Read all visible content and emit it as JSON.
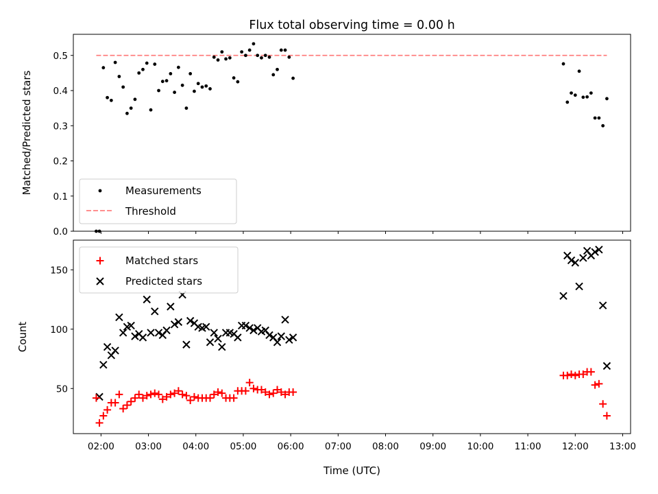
{
  "chart_data": [
    {
      "type": "scatter",
      "title": "Flux total observing time = 0.00 h",
      "xlabel": "",
      "ylabel": "Matched/Predicted stars",
      "xlim": [
        "01:25",
        "13:10"
      ],
      "ylim": [
        0.0,
        0.56
      ],
      "yticks": [
        "0.0",
        "0.1",
        "0.2",
        "0.3",
        "0.4",
        "0.5"
      ],
      "grid": false,
      "legend_placement": "lower-left",
      "series": [
        {
          "name": "Measurements",
          "marker": "dot",
          "color": "#000000",
          "x": [
            "01:54",
            "01:58",
            "02:03",
            "02:08",
            "02:13",
            "02:18",
            "02:23",
            "02:28",
            "02:33",
            "02:38",
            "02:43",
            "02:48",
            "02:53",
            "02:58",
            "03:03",
            "03:08",
            "03:13",
            "03:18",
            "03:23",
            "03:28",
            "03:33",
            "03:38",
            "03:43",
            "03:48",
            "03:53",
            "03:58",
            "04:03",
            "04:08",
            "04:13",
            "04:18",
            "04:23",
            "04:28",
            "04:33",
            "04:38",
            "04:43",
            "04:48",
            "04:53",
            "04:58",
            "05:03",
            "05:08",
            "05:13",
            "05:18",
            "05:23",
            "05:28",
            "05:33",
            "05:38",
            "05:43",
            "05:48",
            "05:53",
            "05:58",
            "06:03",
            "11:45",
            "11:50",
            "11:55",
            "12:00",
            "12:05",
            "12:10",
            "12:15",
            "12:20",
            "12:25",
            "12:30",
            "12:35",
            "12:40"
          ],
          "y": [
            0.0,
            0.0,
            0.465,
            0.38,
            0.372,
            0.48,
            0.44,
            0.41,
            0.335,
            0.35,
            0.375,
            0.45,
            0.46,
            0.478,
            0.345,
            0.475,
            0.4,
            0.426,
            0.428,
            0.448,
            0.395,
            0.466,
            0.415,
            0.35,
            0.448,
            0.398,
            0.42,
            0.41,
            0.413,
            0.405,
            0.495,
            0.487,
            0.51,
            0.49,
            0.493,
            0.436,
            0.425,
            0.51,
            0.5,
            0.515,
            0.533,
            0.5,
            0.493,
            0.5,
            0.495,
            0.445,
            0.46,
            0.515,
            0.515,
            0.495,
            0.435,
            0.476,
            0.367,
            0.393,
            0.387,
            0.455,
            0.381,
            0.382,
            0.393,
            0.322,
            0.322,
            0.3,
            0.377
          ]
        },
        {
          "name": "Threshold",
          "type": "line",
          "style": "dashed",
          "color": "#ff7f7f",
          "x": [
            "01:54",
            "12:40"
          ],
          "y": [
            0.5,
            0.5
          ]
        }
      ]
    },
    {
      "type": "scatter",
      "title": "",
      "xlabel": "Time (UTC)",
      "ylabel": "Count",
      "xlim": [
        "01:25",
        "13:10"
      ],
      "ylim": [
        12,
        175
      ],
      "yticks": [
        "50",
        "100",
        "150"
      ],
      "xticks": [
        "02:00",
        "03:00",
        "04:00",
        "05:00",
        "06:00",
        "07:00",
        "08:00",
        "09:00",
        "10:00",
        "11:00",
        "12:00",
        "13:00"
      ],
      "grid": false,
      "legend_placement": "upper-left",
      "series": [
        {
          "name": "Matched stars",
          "marker": "plus",
          "color": "#ff0000",
          "x": [
            "01:54",
            "01:58",
            "02:03",
            "02:08",
            "02:13",
            "02:18",
            "02:23",
            "02:28",
            "02:33",
            "02:38",
            "02:43",
            "02:48",
            "02:53",
            "02:58",
            "03:03",
            "03:08",
            "03:13",
            "03:18",
            "03:23",
            "03:28",
            "03:33",
            "03:38",
            "03:43",
            "03:48",
            "03:53",
            "03:58",
            "04:03",
            "04:08",
            "04:13",
            "04:18",
            "04:23",
            "04:28",
            "04:33",
            "04:38",
            "04:43",
            "04:48",
            "04:53",
            "04:58",
            "05:03",
            "05:08",
            "05:13",
            "05:18",
            "05:23",
            "05:28",
            "05:33",
            "05:38",
            "05:43",
            "05:48",
            "05:53",
            "05:58",
            "06:03",
            "11:45",
            "11:50",
            "11:55",
            "12:00",
            "12:05",
            "12:10",
            "12:15",
            "12:20",
            "12:25",
            "12:30",
            "12:35",
            "12:40"
          ],
          "y": [
            42,
            21,
            27,
            32,
            38,
            38,
            45,
            33,
            36,
            39,
            42,
            45,
            42,
            44,
            45,
            46,
            45,
            41,
            43,
            45,
            46,
            48,
            45,
            44,
            40,
            43,
            42,
            42,
            42,
            42,
            45,
            47,
            46,
            42,
            42,
            42,
            48,
            48,
            48,
            55,
            50,
            49,
            49,
            47,
            45,
            46,
            49,
            47,
            45,
            47,
            47,
            61,
            61,
            62,
            61,
            62,
            62,
            64,
            64,
            53,
            54,
            37,
            27
          ]
        },
        {
          "name": "Predicted stars",
          "marker": "x",
          "color": "#000000",
          "x": [
            "01:58",
            "02:03",
            "02:08",
            "02:13",
            "02:18",
            "02:23",
            "02:28",
            "02:33",
            "02:38",
            "02:43",
            "02:48",
            "02:53",
            "02:58",
            "03:03",
            "03:08",
            "03:13",
            "03:18",
            "03:23",
            "03:28",
            "03:33",
            "03:38",
            "03:43",
            "03:48",
            "03:53",
            "03:58",
            "04:03",
            "04:08",
            "04:13",
            "04:18",
            "04:23",
            "04:28",
            "04:33",
            "04:38",
            "04:43",
            "04:48",
            "04:53",
            "04:58",
            "05:03",
            "05:08",
            "05:13",
            "05:18",
            "05:23",
            "05:28",
            "05:33",
            "05:38",
            "05:43",
            "05:48",
            "05:53",
            "05:58",
            "06:03",
            "11:45",
            "11:50",
            "11:55",
            "12:00",
            "12:05",
            "12:10",
            "12:15",
            "12:20",
            "12:25",
            "12:30",
            "12:35",
            "12:40"
          ],
          "y": [
            43,
            70,
            85,
            78,
            82,
            110,
            97,
            102,
            103,
            94,
            96,
            93,
            125,
            97,
            115,
            97,
            95,
            99,
            119,
            104,
            106,
            129,
            87,
            107,
            105,
            102,
            101,
            102,
            89,
            97,
            92,
            85,
            97,
            97,
            96,
            93,
            103,
            103,
            101,
            99,
            101,
            98,
            99,
            95,
            93,
            89,
            94,
            108,
            91,
            93,
            128,
            162,
            158,
            156,
            136,
            160,
            166,
            162,
            165,
            167,
            120,
            69
          ]
        }
      ]
    }
  ]
}
